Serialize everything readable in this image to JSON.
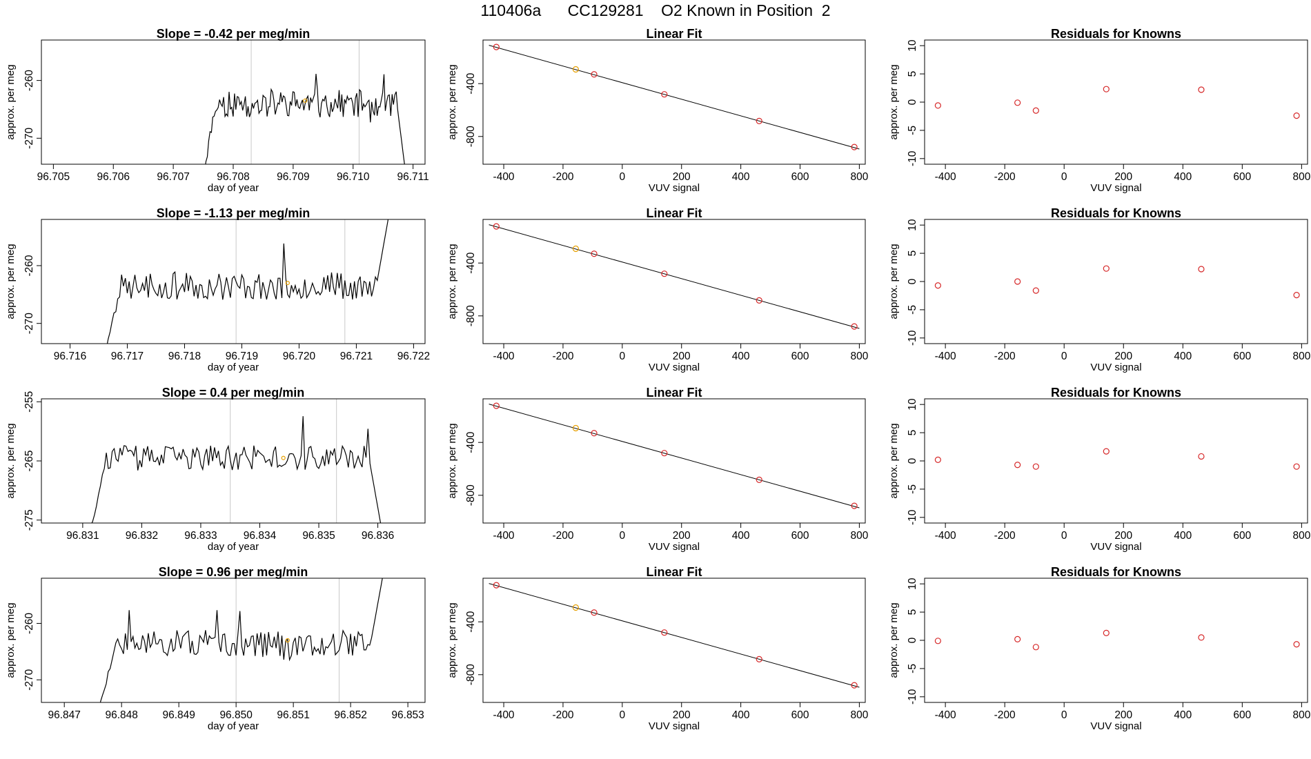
{
  "page_title": "110406a      CC129281    O2 Known in Position  2",
  "colors": {
    "line": "#000000",
    "gridline": "#c8c8c8",
    "residual_points": "#d62728",
    "highlight_point": "#e69f00",
    "fit_points": "#d62728"
  },
  "chart_data": [
    {
      "type": "line",
      "title": "Slope =  -0.42  per meg/min",
      "xlabel": "day of year",
      "ylabel": "approx. per meg",
      "xlim": [
        96.7048,
        96.7112
      ],
      "ylim": [
        -274.5,
        -253
      ],
      "xticks": [
        "96.705",
        "96.706",
        "96.707",
        "96.708",
        "96.709",
        "96.710",
        "96.711"
      ],
      "xtick_values": [
        96.705,
        96.706,
        96.707,
        96.708,
        96.709,
        96.71,
        96.711
      ],
      "yticks": [
        "-260",
        "-270"
      ],
      "ytick_values": [
        -260,
        -270
      ],
      "vlines": [
        96.7083,
        96.7101
      ],
      "series_x_range": [
        96.7075,
        96.7109
      ],
      "series_level": -264,
      "series_noise": 2.4,
      "series_seed": 11,
      "highlight_point": [
        96.7092,
        -263.5
      ]
    },
    {
      "type": "line",
      "title": "Slope =  -1.13  per meg/min",
      "xlabel": "day of year",
      "ylabel": "approx. per meg",
      "xlim": [
        96.7155,
        96.7222
      ],
      "ylim": [
        -273.5,
        -252
      ],
      "xticks": [
        "96.716",
        "96.717",
        "96.718",
        "96.719",
        "96.720",
        "96.721",
        "96.722"
      ],
      "xtick_values": [
        96.716,
        96.717,
        96.718,
        96.719,
        96.72,
        96.721,
        96.722
      ],
      "yticks": [
        "-260",
        "-270"
      ],
      "ytick_values": [
        -260,
        -270
      ],
      "vlines": [
        96.7189,
        96.7208
      ],
      "series_x_range": [
        96.7166,
        96.7216
      ],
      "series_level": -263.5,
      "series_noise": 2.4,
      "series_seed": 23,
      "highlight_point": [
        96.7198,
        -263
      ]
    },
    {
      "type": "line",
      "title": "Slope =  0.4  per meg/min",
      "xlabel": "day of year",
      "ylabel": "approx. per meg",
      "xlim": [
        96.8303,
        96.8368
      ],
      "ylim": [
        -275.5,
        -254.5
      ],
      "xticks": [
        "96.831",
        "96.832",
        "96.833",
        "96.834",
        "96.835",
        "96.836"
      ],
      "xtick_values": [
        96.831,
        96.832,
        96.833,
        96.834,
        96.835,
        96.836
      ],
      "yticks": [
        "-255",
        "-265",
        "-275"
      ],
      "ytick_values": [
        -255,
        -265,
        -275
      ],
      "vlines": [
        96.8335,
        96.8353
      ],
      "series_x_range": [
        96.8311,
        96.8361
      ],
      "series_level": -264.5,
      "series_noise": 2.1,
      "series_seed": 37,
      "highlight_point": [
        96.8344,
        -264.5
      ]
    },
    {
      "type": "line",
      "title": "Slope =  0.96  per meg/min",
      "xlabel": "day of year",
      "ylabel": "approx. per meg",
      "xlim": [
        96.8466,
        96.8533
      ],
      "ylim": [
        -274,
        -252
      ],
      "xticks": [
        "96.847",
        "96.848",
        "96.849",
        "96.850",
        "96.851",
        "96.852",
        "96.853"
      ],
      "xtick_values": [
        96.847,
        96.848,
        96.849,
        96.85,
        96.851,
        96.852,
        96.853
      ],
      "yticks": [
        "-260",
        "-270"
      ],
      "ytick_values": [
        -260,
        -270
      ],
      "vlines": [
        96.85,
        96.8518
      ],
      "series_x_range": [
        96.8476,
        96.8526
      ],
      "series_level": -263.5,
      "series_noise": 2.3,
      "series_seed": 51,
      "highlight_point": [
        96.8509,
        -263
      ]
    },
    {
      "type": "scatter",
      "title": "Linear Fit",
      "xlabel": "VUV signal",
      "ylabel": "approx. per meg",
      "xlim": [
        -470,
        820
      ],
      "ylim": [
        -1010,
        -70
      ],
      "xticks": [
        "-400",
        "-200",
        "0",
        "200",
        "400",
        "600",
        "800"
      ],
      "xtick_values": [
        -400,
        -200,
        0,
        200,
        400,
        600,
        800
      ],
      "yticks": [
        "-400",
        "-800"
      ],
      "ytick_values": [
        -400,
        -800
      ],
      "x": [
        -425,
        -157,
        -95,
        142,
        462,
        783
      ],
      "y": [
        -123,
        -292,
        -330,
        -481,
        -683,
        -880
      ],
      "highlight_index": 1,
      "fit_line": [
        [
          -450,
          -110
        ],
        [
          800,
          -895
        ]
      ]
    },
    {
      "type": "scatter",
      "title": "Residuals for Knowns",
      "xlabel": "VUV signal",
      "ylabel": "approx. per meg",
      "xlim": [
        -470,
        820
      ],
      "ylim": [
        -11,
        11
      ],
      "xticks": [
        "-400",
        "-200",
        "0",
        "200",
        "400",
        "600",
        "800"
      ],
      "xtick_values": [
        -400,
        -200,
        0,
        200,
        400,
        600,
        800
      ],
      "yticks": [
        "10",
        "5",
        "0",
        "-5",
        "-10"
      ],
      "ytick_values": [
        10,
        5,
        0,
        -5,
        -10
      ],
      "x": [
        -425,
        -157,
        -95,
        142,
        462,
        783
      ],
      "y_rows": [
        [
          -0.6,
          -0.1,
          -1.5,
          2.3,
          2.2,
          -2.4
        ],
        [
          -0.7,
          0.0,
          -1.6,
          2.3,
          2.2,
          -2.4
        ],
        [
          0.2,
          -0.7,
          -1.0,
          1.7,
          0.8,
          -1.0
        ],
        [
          -0.1,
          0.2,
          -1.2,
          1.3,
          0.5,
          -0.7
        ]
      ]
    }
  ]
}
